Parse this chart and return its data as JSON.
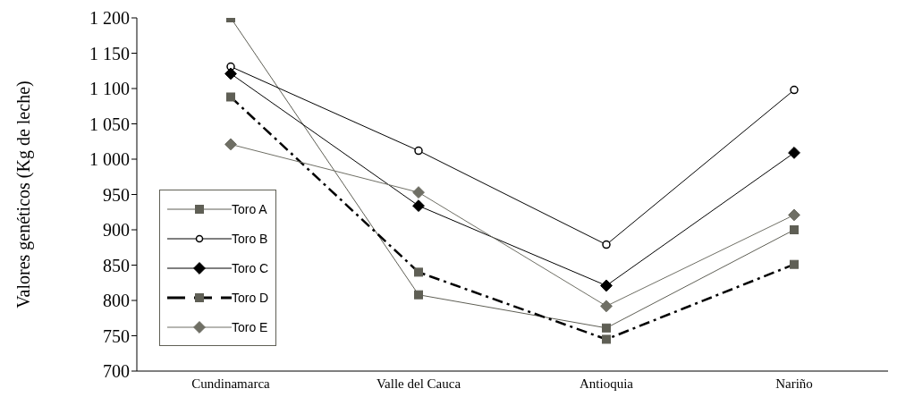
{
  "chart_data": {
    "type": "line",
    "ylabel": "Valores genéticos (Kg de leche)",
    "categories": [
      "Cundinamarca",
      "Valle del Cauca",
      "Antioquia",
      "Nariño"
    ],
    "ylim": [
      700,
      1200
    ],
    "yticks": [
      700,
      750,
      800,
      850,
      900,
      950,
      {
        "value": 1000,
        "label": "1 000"
      },
      {
        "value": 1050,
        "label": "1 050"
      },
      {
        "value": 1100,
        "label": "1 100"
      },
      {
        "value": 1150,
        "label": "1 150"
      },
      {
        "value": 1200,
        "label": "1 200"
      }
    ],
    "legend": "left",
    "grid": false,
    "series": [
      {
        "name": "Toro A",
        "color": "#5f5f55",
        "marker": "square",
        "line_style": "solid",
        "values": [
          1200,
          808,
          761,
          900
        ]
      },
      {
        "name": "Toro B",
        "color": "#000000",
        "marker": "circle",
        "line_style": "solid",
        "values": [
          1131,
          1012,
          879,
          1098
        ]
      },
      {
        "name": "Toro C",
        "color": "#000000",
        "marker": "diamond",
        "line_style": "solid",
        "values": [
          1121,
          934,
          821,
          1009
        ]
      },
      {
        "name": "Toro D",
        "color": "#5f5f55",
        "marker": "square",
        "line_style": "dashed",
        "values": [
          1088,
          840,
          745,
          851
        ]
      },
      {
        "name": "Toro E",
        "color": "#6f6f65",
        "marker": "diamond",
        "line_style": "solid",
        "values": [
          1021,
          953,
          792,
          921
        ]
      }
    ]
  }
}
